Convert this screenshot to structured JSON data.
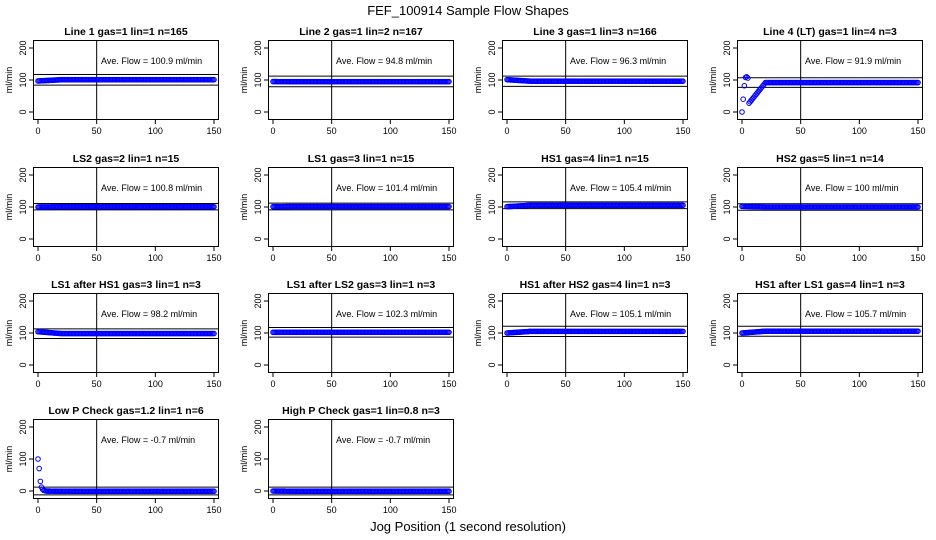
{
  "figure": {
    "title": "FEF_100914  Sample Flow Shapes",
    "xlabel": "Jog Position (1 second resolution)"
  },
  "chart_data": [
    {
      "type": "scatter",
      "title": "Line 1 gas=1 lin=1 n=165",
      "ylabel": "ml/min",
      "xlim": [
        0,
        150
      ],
      "ylim": [
        -25,
        225
      ],
      "xticks": [
        0,
        50,
        100,
        150
      ],
      "yticks": [
        0,
        100,
        200
      ],
      "vline": 50,
      "hlines": [
        84,
        117
      ],
      "annotation": "Ave. Flow = 100.9  ml/min",
      "color": "#0000ff",
      "shape": {
        "start": 97,
        "level": 100.9,
        "spike": null
      }
    },
    {
      "type": "scatter",
      "title": "Line 2 gas=1 lin=2 n=167",
      "ylabel": "ml/min",
      "xlim": [
        0,
        150
      ],
      "ylim": [
        -25,
        225
      ],
      "xticks": [
        0,
        50,
        100,
        150
      ],
      "yticks": [
        0,
        100,
        200
      ],
      "vline": 50,
      "hlines": [
        79,
        112
      ],
      "annotation": "Ave. Flow = 94.8  ml/min",
      "color": "#0000ff",
      "shape": {
        "start": 95,
        "level": 94.8,
        "spike": null
      }
    },
    {
      "type": "scatter",
      "title": "Line 3 gas=1 lin=3 n=166",
      "ylabel": "ml/min",
      "xlim": [
        0,
        150
      ],
      "ylim": [
        -25,
        225
      ],
      "xticks": [
        0,
        50,
        100,
        150
      ],
      "yticks": [
        0,
        100,
        200
      ],
      "vline": 50,
      "hlines": [
        80,
        112
      ],
      "annotation": "Ave. Flow = 96.3  ml/min",
      "color": "#0000ff",
      "shape": {
        "start": 101,
        "level": 96.3,
        "spike": null
      }
    },
    {
      "type": "scatter",
      "title": "Line 4 (LT) gas=1 lin=4 n=3",
      "ylabel": "ml/min",
      "xlim": [
        0,
        150
      ],
      "ylim": [
        -25,
        225
      ],
      "xticks": [
        0,
        50,
        100,
        150
      ],
      "yticks": [
        0,
        100,
        200
      ],
      "vline": 50,
      "hlines": [
        77,
        107
      ],
      "annotation": "Ave. Flow = 91.9  ml/min",
      "color": "#0000ff",
      "shape": {
        "start": 0,
        "level": 91.9,
        "spike": [
          0,
          40,
          82,
          108,
          110,
          106
        ]
      }
    },
    {
      "type": "scatter",
      "title": "LS2 gas=2 lin=1 n=15",
      "ylabel": "ml/min",
      "xlim": [
        0,
        150
      ],
      "ylim": [
        -25,
        225
      ],
      "xticks": [
        0,
        50,
        100,
        150
      ],
      "yticks": [
        0,
        100,
        200
      ],
      "vline": 50,
      "hlines": [
        91,
        111
      ],
      "annotation": "Ave. Flow = 100.8  ml/min",
      "color": "#0000ff",
      "shape": {
        "start": 100,
        "level": 100.8,
        "spike": null
      }
    },
    {
      "type": "scatter",
      "title": "LS1 gas=3 lin=1 n=15",
      "ylabel": "ml/min",
      "xlim": [
        0,
        150
      ],
      "ylim": [
        -25,
        225
      ],
      "xticks": [
        0,
        50,
        100,
        150
      ],
      "yticks": [
        0,
        100,
        200
      ],
      "vline": 50,
      "hlines": [
        91,
        112
      ],
      "annotation": "Ave. Flow = 101.4  ml/min",
      "color": "#0000ff",
      "shape": {
        "start": 101,
        "level": 101.4,
        "spike": null
      }
    },
    {
      "type": "scatter",
      "title": "HS1 gas=4 lin=1 n=15",
      "ylabel": "ml/min",
      "xlim": [
        0,
        150
      ],
      "ylim": [
        -25,
        225
      ],
      "xticks": [
        0,
        50,
        100,
        150
      ],
      "yticks": [
        0,
        100,
        200
      ],
      "vline": 50,
      "hlines": [
        95,
        116
      ],
      "annotation": "Ave. Flow = 105.4  ml/min",
      "color": "#0000ff",
      "shape": {
        "start": 101,
        "level": 105.4,
        "spike": null
      }
    },
    {
      "type": "scatter",
      "title": "HS2 gas=5 lin=1 n=14",
      "ylabel": "ml/min",
      "xlim": [
        0,
        150
      ],
      "ylim": [
        -25,
        225
      ],
      "xticks": [
        0,
        50,
        100,
        150
      ],
      "yticks": [
        0,
        100,
        200
      ],
      "vline": 50,
      "hlines": [
        90,
        110
      ],
      "annotation": "Ave. Flow = 100  ml/min",
      "color": "#0000ff",
      "shape": {
        "start": 102,
        "level": 100,
        "spike": null
      }
    },
    {
      "type": "scatter",
      "title": "LS1 after HS1 gas=3 lin=1 n=3",
      "ylabel": "ml/min",
      "xlim": [
        0,
        150
      ],
      "ylim": [
        -25,
        225
      ],
      "xticks": [
        0,
        50,
        100,
        150
      ],
      "yticks": [
        0,
        100,
        200
      ],
      "vline": 50,
      "hlines": [
        83,
        113
      ],
      "annotation": "Ave. Flow = 98.2  ml/min",
      "color": "#0000ff",
      "shape": {
        "start": 104,
        "level": 98.2,
        "spike": null
      }
    },
    {
      "type": "scatter",
      "title": "LS1 after LS2 gas=3 lin=1 n=3",
      "ylabel": "ml/min",
      "xlim": [
        0,
        150
      ],
      "ylim": [
        -25,
        225
      ],
      "xticks": [
        0,
        50,
        100,
        150
      ],
      "yticks": [
        0,
        100,
        200
      ],
      "vline": 50,
      "hlines": [
        87,
        117
      ],
      "annotation": "Ave. Flow = 102.3  ml/min",
      "color": "#0000ff",
      "shape": {
        "start": 102,
        "level": 102.3,
        "spike": null
      }
    },
    {
      "type": "scatter",
      "title": "HS1 after HS2 gas=4 lin=1 n=3",
      "ylabel": "ml/min",
      "xlim": [
        0,
        150
      ],
      "ylim": [
        -25,
        225
      ],
      "xticks": [
        0,
        50,
        100,
        150
      ],
      "yticks": [
        0,
        100,
        200
      ],
      "vline": 50,
      "hlines": [
        89,
        121
      ],
      "annotation": "Ave. Flow = 105.1  ml/min",
      "color": "#0000ff",
      "shape": {
        "start": 100,
        "level": 105.1,
        "spike": null
      }
    },
    {
      "type": "scatter",
      "title": "HS1 after LS1 gas=4 lin=1 n=3",
      "ylabel": "ml/min",
      "xlim": [
        0,
        150
      ],
      "ylim": [
        -25,
        225
      ],
      "xticks": [
        0,
        50,
        100,
        150
      ],
      "yticks": [
        0,
        100,
        200
      ],
      "vline": 50,
      "hlines": [
        90,
        121
      ],
      "annotation": "Ave. Flow = 105.7  ml/min",
      "color": "#0000ff",
      "shape": {
        "start": 100,
        "level": 105.7,
        "spike": null
      }
    },
    {
      "type": "scatter",
      "title": "Low P Check gas=1.2 lin=1 n=6",
      "ylabel": "ml/min",
      "xlim": [
        0,
        150
      ],
      "ylim": [
        -25,
        225
      ],
      "xticks": [
        0,
        50,
        100,
        150
      ],
      "yticks": [
        0,
        100,
        200
      ],
      "vline": 50,
      "hlines": [
        -12,
        12
      ],
      "annotation": "Ave. Flow = -0.7  ml/min",
      "color": "#0000ff",
      "shape": {
        "start": 0,
        "level": -0.7,
        "spike": [
          100,
          70,
          30,
          12,
          5,
          2,
          1
        ]
      }
    },
    {
      "type": "scatter",
      "title": "High P Check gas=1 lin=0.8 n=3",
      "ylabel": "ml/min",
      "xlim": [
        0,
        150
      ],
      "ylim": [
        -25,
        225
      ],
      "xticks": [
        0,
        50,
        100,
        150
      ],
      "yticks": [
        0,
        100,
        200
      ],
      "vline": 50,
      "hlines": [
        -12,
        12
      ],
      "annotation": "Ave. Flow = -0.7  ml/min",
      "color": "#0000ff",
      "shape": {
        "start": 0,
        "level": -0.7,
        "spike": null
      }
    }
  ]
}
